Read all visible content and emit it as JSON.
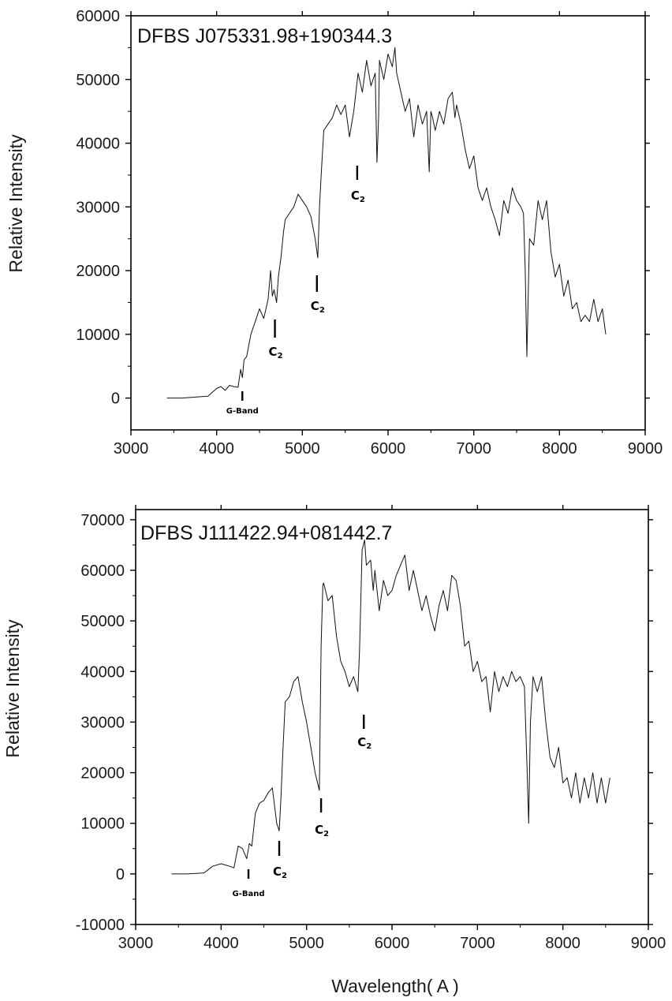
{
  "chart_data": [
    {
      "type": "line",
      "title": "DFBS J075331.98+190344.3",
      "ylabel": "Relative Intensity",
      "xlabel": "",
      "xlim": [
        3000,
        9000
      ],
      "ylim": [
        -5000,
        60000
      ],
      "xticks": [
        3000,
        4000,
        5000,
        6000,
        7000,
        8000,
        9000
      ],
      "yticks": [
        0,
        10000,
        20000,
        30000,
        40000,
        50000,
        60000
      ],
      "x_tick_labels": [
        "3000",
        "4000",
        "5000",
        "6000",
        "7000",
        "8000",
        "9000"
      ],
      "y_tick_labels": [
        "0",
        "10000",
        "20000",
        "30000",
        "40000",
        "50000",
        "60000"
      ],
      "series": [
        {
          "x": [
            3420,
            3600,
            3800,
            3900,
            3950,
            4000,
            4050,
            4100,
            4150,
            4200,
            4250,
            4280,
            4300,
            4320,
            4350,
            4400,
            4450,
            4500,
            4550,
            4600,
            4630,
            4650,
            4670,
            4700,
            4720,
            4750,
            4780,
            4800,
            4850,
            4900,
            4950,
            5000,
            5050,
            5100,
            5150,
            5180,
            5200,
            5220,
            5250,
            5300,
            5350,
            5400,
            5450,
            5500,
            5550,
            5600,
            5650,
            5700,
            5750,
            5800,
            5850,
            5870,
            5890,
            5900,
            5950,
            6000,
            6050,
            6080,
            6100,
            6150,
            6200,
            6250,
            6300,
            6350,
            6400,
            6450,
            6480,
            6500,
            6520,
            6550,
            6600,
            6650,
            6700,
            6750,
            6780,
            6800,
            6850,
            6900,
            6950,
            7000,
            7050,
            7100,
            7150,
            7200,
            7250,
            7300,
            7350,
            7400,
            7450,
            7500,
            7550,
            7580,
            7600,
            7620,
            7650,
            7700,
            7750,
            7800,
            7850,
            7900,
            7950,
            8000,
            8050,
            8100,
            8150,
            8200,
            8250,
            8300,
            8350,
            8400,
            8450,
            8500,
            8540
          ],
          "y": [
            0,
            0,
            200,
            300,
            900,
            1500,
            1800,
            1200,
            2000,
            1800,
            1700,
            4500,
            3200,
            6000,
            6500,
            10000,
            12000,
            14000,
            12500,
            15500,
            20000,
            16000,
            17000,
            15000,
            19000,
            22000,
            26000,
            28000,
            29000,
            30000,
            32000,
            31000,
            30000,
            28500,
            25000,
            22000,
            30000,
            35000,
            42000,
            43000,
            44000,
            46000,
            44500,
            46000,
            41000,
            45000,
            51000,
            48000,
            53000,
            49000,
            51000,
            37000,
            44000,
            53000,
            50000,
            54000,
            52000,
            55000,
            51000,
            48000,
            45000,
            47000,
            41000,
            46000,
            43000,
            45000,
            35500,
            45000,
            44000,
            42000,
            45000,
            43000,
            47000,
            48000,
            44000,
            46000,
            43000,
            39000,
            36000,
            38000,
            33000,
            31000,
            33000,
            30000,
            28000,
            25500,
            31000,
            29000,
            33000,
            31000,
            30000,
            29000,
            20000,
            6500,
            25000,
            24000,
            31000,
            28000,
            31000,
            23000,
            19000,
            21000,
            16000,
            18500,
            14000,
            15000,
            12000,
            13000,
            12000,
            15500,
            12000,
            14000,
            10000
          ]
        }
      ],
      "annotations": [
        {
          "label": "G-Band",
          "x": 4300
        },
        {
          "label": "C",
          "sub": "2",
          "x": 4680
        },
        {
          "label": "C",
          "sub": "2",
          "x": 5170
        },
        {
          "label": "C",
          "sub": "2",
          "x": 5640
        }
      ]
    },
    {
      "type": "line",
      "title": "DFBS J111422.94+081442.7",
      "ylabel": "Relative Intensity",
      "xlabel": "Wavelength( A )",
      "xlim": [
        3000,
        9000
      ],
      "ylim": [
        -10000,
        72000
      ],
      "xticks": [
        3000,
        4000,
        5000,
        6000,
        7000,
        8000,
        9000
      ],
      "yticks": [
        -10000,
        0,
        10000,
        20000,
        30000,
        40000,
        50000,
        60000,
        70000
      ],
      "x_tick_labels": [
        "3000",
        "4000",
        "5000",
        "6000",
        "7000",
        "8000",
        "9000"
      ],
      "y_tick_labels": [
        "-10000",
        "0",
        "10000",
        "20000",
        "30000",
        "40000",
        "50000",
        "60000",
        "70000"
      ],
      "series": [
        {
          "x": [
            3420,
            3600,
            3800,
            3900,
            4000,
            4100,
            4150,
            4200,
            4250,
            4300,
            4330,
            4360,
            4400,
            4450,
            4500,
            4550,
            4600,
            4650,
            4680,
            4700,
            4720,
            4750,
            4800,
            4850,
            4900,
            4950,
            5000,
            5050,
            5100,
            5150,
            5170,
            5190,
            5200,
            5250,
            5300,
            5350,
            5400,
            5450,
            5500,
            5550,
            5600,
            5620,
            5650,
            5680,
            5700,
            5750,
            5780,
            5800,
            5850,
            5900,
            5950,
            6000,
            6050,
            6100,
            6150,
            6200,
            6250,
            6300,
            6350,
            6400,
            6450,
            6500,
            6550,
            6600,
            6650,
            6700,
            6750,
            6800,
            6850,
            6900,
            6950,
            7000,
            7050,
            7100,
            7150,
            7200,
            7250,
            7300,
            7350,
            7400,
            7450,
            7500,
            7550,
            7580,
            7600,
            7620,
            7650,
            7700,
            7750,
            7800,
            7850,
            7900,
            7950,
            8000,
            8050,
            8100,
            8150,
            8200,
            8250,
            8300,
            8350,
            8400,
            8450,
            8500,
            8550
          ],
          "y": [
            0,
            0,
            200,
            1500,
            2000,
            1500,
            1200,
            5500,
            5000,
            3000,
            6000,
            5500,
            12000,
            14000,
            14500,
            16000,
            17000,
            10000,
            8500,
            15000,
            23000,
            34000,
            35000,
            38000,
            39000,
            34000,
            30000,
            25000,
            20000,
            16500,
            45000,
            57000,
            57500,
            54000,
            55000,
            47000,
            42000,
            40000,
            37000,
            39000,
            36000,
            44000,
            64000,
            66000,
            61000,
            62000,
            56000,
            60000,
            52000,
            58000,
            55000,
            56000,
            59000,
            61000,
            63000,
            56000,
            60000,
            56000,
            52000,
            55000,
            51000,
            48000,
            53000,
            56000,
            52000,
            59000,
            58000,
            53000,
            45000,
            46000,
            40000,
            42000,
            38000,
            39000,
            32000,
            40000,
            36000,
            39000,
            37000,
            40000,
            38000,
            39000,
            37000,
            21000,
            10000,
            30000,
            39000,
            36000,
            39000,
            30000,
            23000,
            21000,
            25000,
            18000,
            19000,
            15000,
            20000,
            14000,
            19000,
            15000,
            20000,
            14000,
            19000,
            14000,
            19000
          ]
        }
      ],
      "annotations": [
        {
          "label": "G-Band",
          "x": 4320
        },
        {
          "label": "C",
          "sub": "2",
          "x": 4680
        },
        {
          "label": "C",
          "sub": "2",
          "x": 5170
        },
        {
          "label": "C",
          "sub": "2",
          "x": 5670
        }
      ]
    }
  ]
}
